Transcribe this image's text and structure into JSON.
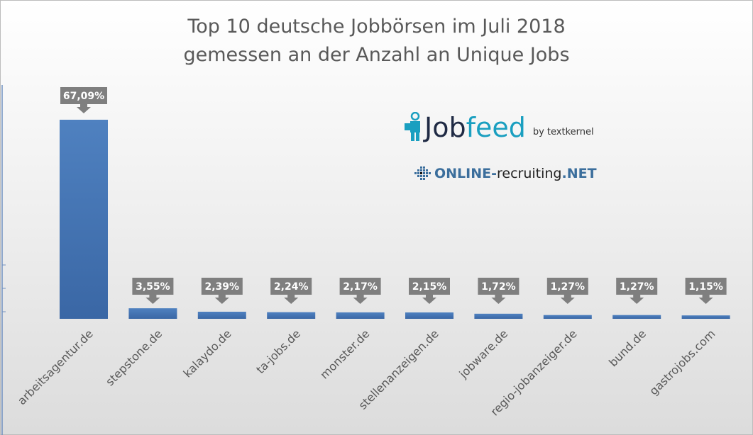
{
  "chart_data": {
    "type": "bar",
    "title_line1": "Top 10 deutsche Jobbörsen im Juli 2018",
    "title_line2": "gemessen an der Anzahl an Unique Jobs",
    "categories": [
      "arbeitsagentur.de",
      "stepstone.de",
      "kalaydo.de",
      "ta-jobs.de",
      "monster.de",
      "stellenanzeigen.de",
      "jobware.de",
      "regio-jobanzeiger.de",
      "bund.de",
      "gastrojobs.com"
    ],
    "values": [
      67.09,
      3.55,
      2.39,
      2.24,
      2.17,
      2.15,
      1.72,
      1.27,
      1.27,
      1.15
    ],
    "data_labels": [
      "67,09%",
      "3,55%",
      "2,39%",
      "2,24%",
      "2,17%",
      "2,15%",
      "1,72%",
      "1,27%",
      "1,27%",
      "1,15%"
    ],
    "xlabel": "",
    "ylabel": "",
    "ylim": [
      0,
      70
    ],
    "bar_color": "#4472c4",
    "label_color": "#7f7f7f"
  },
  "logos": {
    "jobfeed_a": "Job",
    "jobfeed_b": "feed",
    "jobfeed_by": "by textkernel",
    "online_a": "ONLINE-",
    "online_b": "recruiting",
    "online_c": ".NET"
  }
}
